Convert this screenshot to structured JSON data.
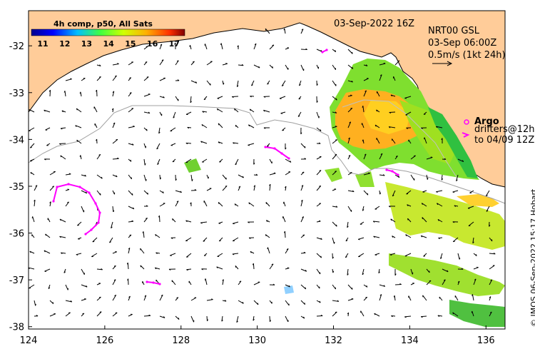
{
  "map": {
    "date_label": "03-Sep-2022 16Z",
    "model_name": "NRT00 GSL",
    "model_time": "03-Sep 06:00Z",
    "scale_label": "0.5m/s (1kt 24h)",
    "argo_label": "Argo",
    "drifter_label_1": "drifters@12h",
    "drifter_label_2": "to 04/09 12Z",
    "credit": "© IMOS 06-Sep-2022 15:17 Hobart",
    "x_ticks": [
      "124",
      "126",
      "128",
      "130",
      "132",
      "134",
      "136"
    ],
    "y_ticks": [
      "-32",
      "-33",
      "-34",
      "-35",
      "-36",
      "-37",
      "-38"
    ],
    "x_range": [
      124,
      136.5
    ],
    "y_range": [
      -38.05,
      -31.25
    ]
  },
  "colorbar": {
    "title": "4h comp, p50, All Sats",
    "ticks": [
      "11",
      "12",
      "13",
      "14",
      "15",
      "16",
      "17"
    ],
    "range": [
      10.5,
      17.5
    ]
  },
  "colors": {
    "land": "#ffcc99",
    "coast": "#000000",
    "shelf_contour": "#a0a0a0",
    "drifter": "#ff00ff",
    "arrow": "#000000"
  }
}
